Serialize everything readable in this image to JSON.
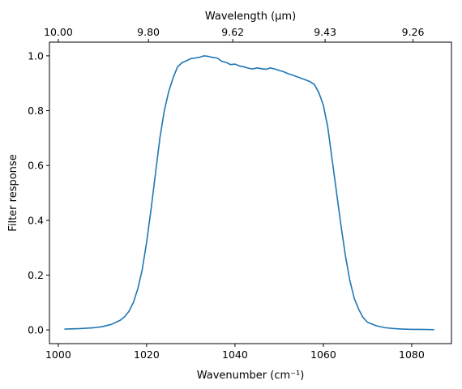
{
  "chart_data": {
    "type": "line",
    "title": "",
    "xlabel": "Wavenumber (cm⁻¹)",
    "ylabel": "Filter response",
    "top_xlabel": "Wavelength (μm)",
    "xlim": [
      998,
      1089
    ],
    "ylim": [
      -0.05,
      1.05
    ],
    "grid": false,
    "x_ticks": [
      1000,
      1020,
      1040,
      1060,
      1080
    ],
    "x_tick_labels": [
      "1000",
      "1020",
      "1040",
      "1060",
      "1080"
    ],
    "y_ticks": [
      0.0,
      0.2,
      0.4,
      0.6,
      0.8,
      1.0
    ],
    "y_tick_labels": [
      "0.0",
      "0.2",
      "0.4",
      "0.6",
      "0.8",
      "1.0"
    ],
    "top_ticks": [
      1000,
      1020.4,
      1039.5,
      1060.4,
      1080.3
    ],
    "top_tick_labels": [
      "10.00",
      "9.80",
      "9.62",
      "9.43",
      "9.26"
    ],
    "series": [
      {
        "color": "#1f77b4",
        "x": [
          1001.5,
          1005,
          1008,
          1010,
          1012,
          1014,
          1015,
          1016,
          1017,
          1018,
          1019,
          1020,
          1021,
          1022,
          1023,
          1024,
          1025,
          1026,
          1027,
          1028,
          1029,
          1030,
          1031,
          1032,
          1033,
          1034,
          1035,
          1036,
          1037,
          1038,
          1039,
          1040,
          1041,
          1042,
          1043,
          1044,
          1045,
          1046,
          1047,
          1048,
          1049,
          1050,
          1051,
          1052,
          1053,
          1054,
          1055,
          1056,
          1057,
          1058,
          1059,
          1060,
          1061,
          1062,
          1063,
          1064,
          1065,
          1066,
          1067,
          1068,
          1069,
          1070,
          1072,
          1074,
          1076,
          1078,
          1080,
          1082,
          1085
        ],
        "y": [
          0.003,
          0.005,
          0.008,
          0.012,
          0.02,
          0.035,
          0.048,
          0.068,
          0.1,
          0.15,
          0.22,
          0.32,
          0.44,
          0.57,
          0.7,
          0.8,
          0.87,
          0.92,
          0.96,
          0.975,
          0.982,
          0.99,
          0.992,
          0.995,
          1.0,
          0.998,
          0.994,
          0.992,
          0.98,
          0.976,
          0.968,
          0.97,
          0.963,
          0.96,
          0.955,
          0.952,
          0.956,
          0.953,
          0.951,
          0.956,
          0.952,
          0.947,
          0.942,
          0.935,
          0.93,
          0.924,
          0.918,
          0.912,
          0.906,
          0.895,
          0.865,
          0.82,
          0.74,
          0.62,
          0.5,
          0.38,
          0.27,
          0.18,
          0.115,
          0.075,
          0.045,
          0.028,
          0.015,
          0.008,
          0.005,
          0.003,
          0.002,
          0.002,
          0.001
        ]
      }
    ]
  }
}
